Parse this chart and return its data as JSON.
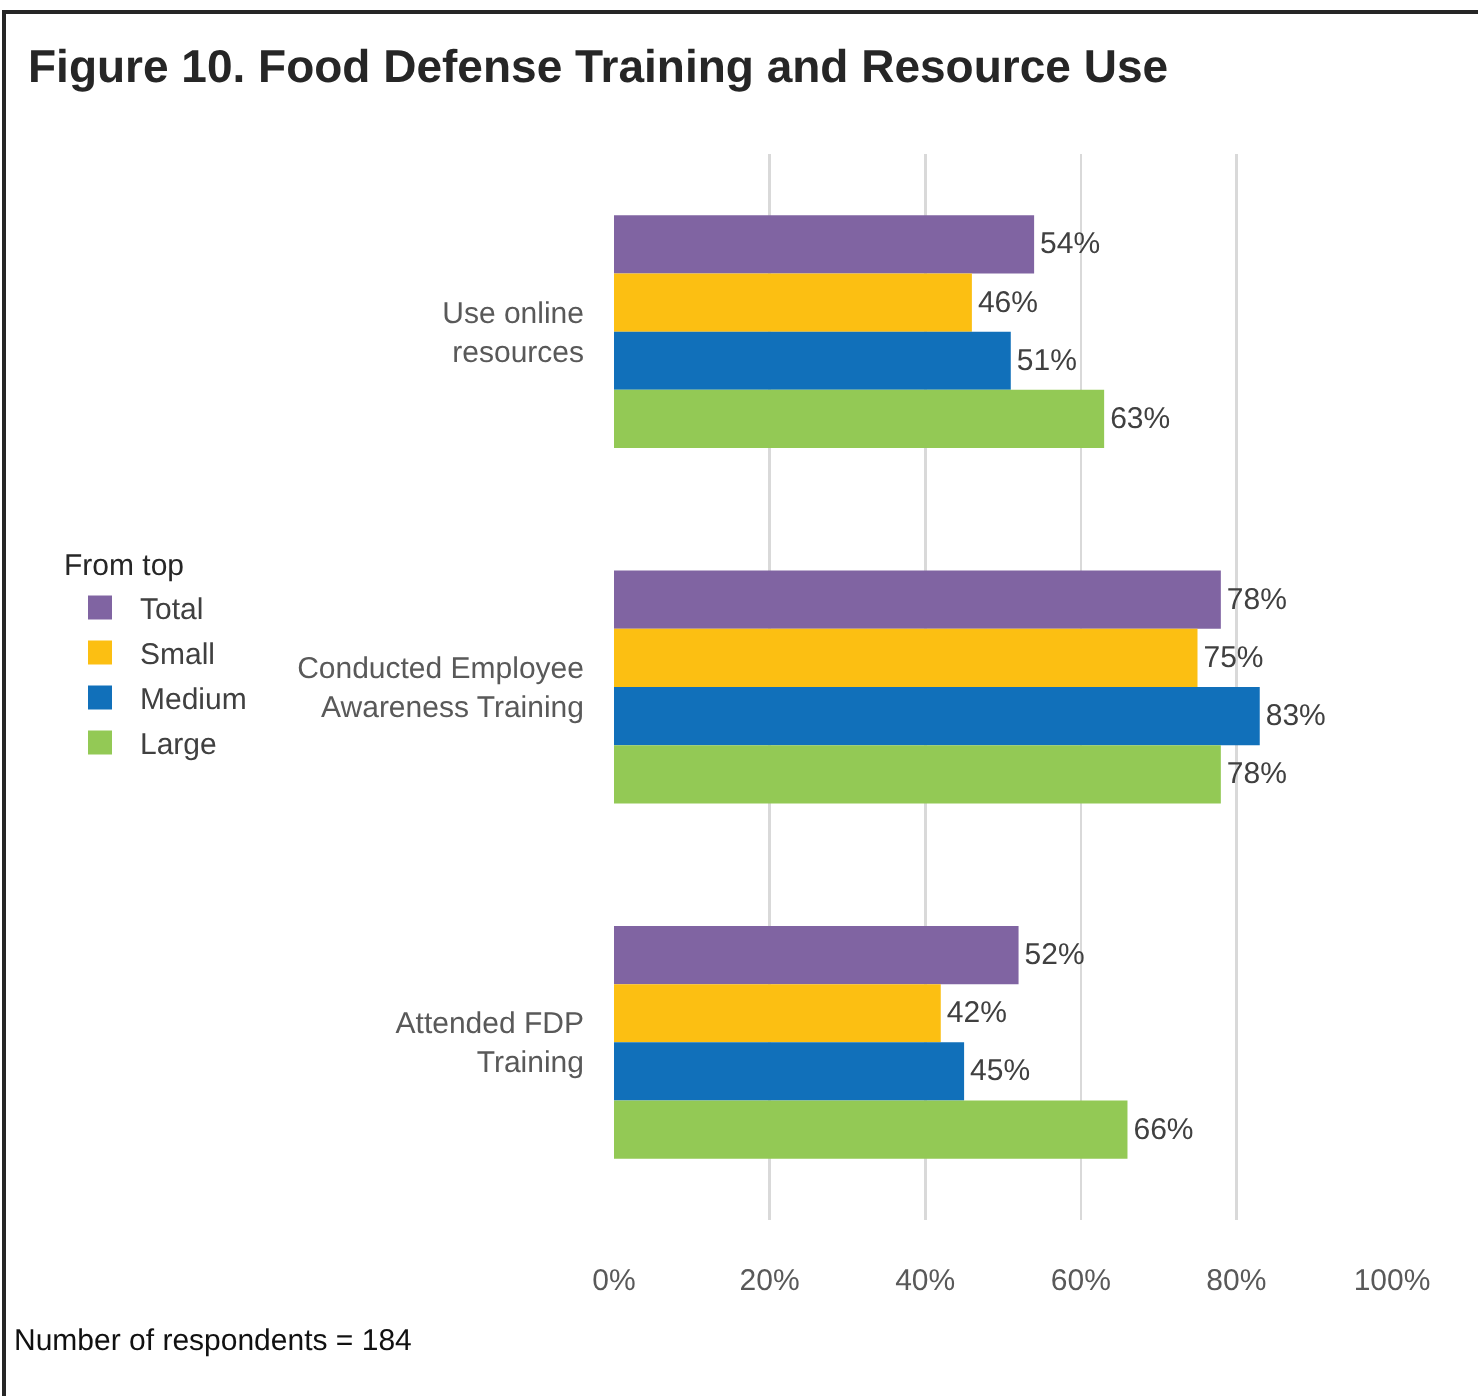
{
  "chart_data": {
    "type": "bar",
    "orientation": "horizontal",
    "title": "Figure 10. Food Defense Training and Resource Use",
    "legend_title": "From top",
    "categories": [
      "Use online resources",
      "Conducted Employee Awareness Training",
      "Attended FDP Training"
    ],
    "series": [
      {
        "name": "Total",
        "color": "#8064a2",
        "values": [
          54,
          78,
          52
        ],
        "value_labels": [
          "54%",
          "78%",
          "52%"
        ]
      },
      {
        "name": "Small",
        "color": "#fcbf12",
        "values": [
          46,
          75,
          42
        ],
        "value_labels": [
          "46%",
          "75%",
          "42%"
        ]
      },
      {
        "name": "Medium",
        "color": "#1170ba",
        "values": [
          51,
          83,
          45
        ],
        "value_labels": [
          "51%",
          "83%",
          "45%"
        ]
      },
      {
        "name": "Large",
        "color": "#93c955",
        "values": [
          63,
          78,
          66
        ],
        "value_labels": [
          "63%",
          "78%",
          "66%"
        ]
      }
    ],
    "xlim": [
      0,
      100
    ],
    "xticks": [
      {
        "value": 0,
        "label": "0%"
      },
      {
        "value": 20,
        "label": "20%"
      },
      {
        "value": 40,
        "label": "40%"
      },
      {
        "value": 60,
        "label": "60%"
      },
      {
        "value": 80,
        "label": "80%"
      },
      {
        "value": 100,
        "label": "100%"
      }
    ],
    "grid": "x",
    "legend": "left",
    "annotations": [
      "Number of respondents = 184"
    ]
  }
}
